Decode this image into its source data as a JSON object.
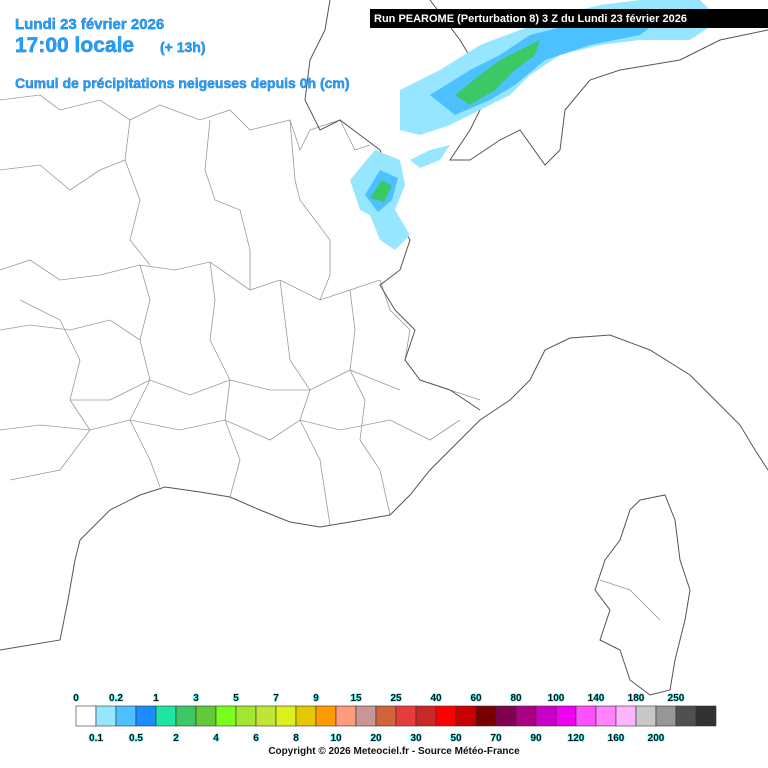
{
  "header": {
    "date": "Lundi 23 février 2026",
    "time": "17:00 locale",
    "lead": "(+ 13h)",
    "subtitle": "Cumul de précipitations neigeuses depuis 0h (cm)",
    "run": "Run PEAROME (Perturbation 8) 3 Z du Lundi 23 février 2026"
  },
  "legend": {
    "items": [
      {
        "label": "0",
        "color": "#ffffff"
      },
      {
        "label": "0.1",
        "color": "#96e6ff"
      },
      {
        "label": "0.2",
        "color": "#4dc0ff"
      },
      {
        "label": "0.5",
        "color": "#1a8cff"
      },
      {
        "label": "1",
        "color": "#1ee6a0"
      },
      {
        "label": "2",
        "color": "#3cc864"
      },
      {
        "label": "3",
        "color": "#64c83c"
      },
      {
        "label": "4",
        "color": "#78ff1e"
      },
      {
        "label": "5",
        "color": "#a0e632"
      },
      {
        "label": "6",
        "color": "#bee632"
      },
      {
        "label": "7",
        "color": "#dcf01e"
      },
      {
        "label": "8",
        "color": "#e6c800"
      },
      {
        "label": "9",
        "color": "#ff9b00"
      },
      {
        "label": "10",
        "color": "#ff9b7d"
      },
      {
        "label": "15",
        "color": "#c89696"
      },
      {
        "label": "20",
        "color": "#d2643c"
      },
      {
        "label": "25",
        "color": "#e63c3c"
      },
      {
        "label": "30",
        "color": "#c82828"
      },
      {
        "label": "40",
        "color": "#ff0000"
      },
      {
        "label": "50",
        "color": "#c80000"
      },
      {
        "label": "60",
        "color": "#780000"
      },
      {
        "label": "70",
        "color": "#820050"
      },
      {
        "label": "80",
        "color": "#aa0082"
      },
      {
        "label": "90",
        "color": "#c800c8"
      },
      {
        "label": "100",
        "color": "#f000f0"
      },
      {
        "label": "120",
        "color": "#ff50ff"
      },
      {
        "label": "140",
        "color": "#ff82ff"
      },
      {
        "label": "160",
        "color": "#ffb4ff"
      },
      {
        "label": "180",
        "color": "#c8c8c8"
      },
      {
        "label": "200",
        "color": "#969696"
      },
      {
        "label": "250",
        "color": "#505050"
      }
    ],
    "extra_color": "#323232"
  },
  "footer": {
    "copyright": "Copyright © 2026 Meteociel.fr - Source Météo-France"
  }
}
